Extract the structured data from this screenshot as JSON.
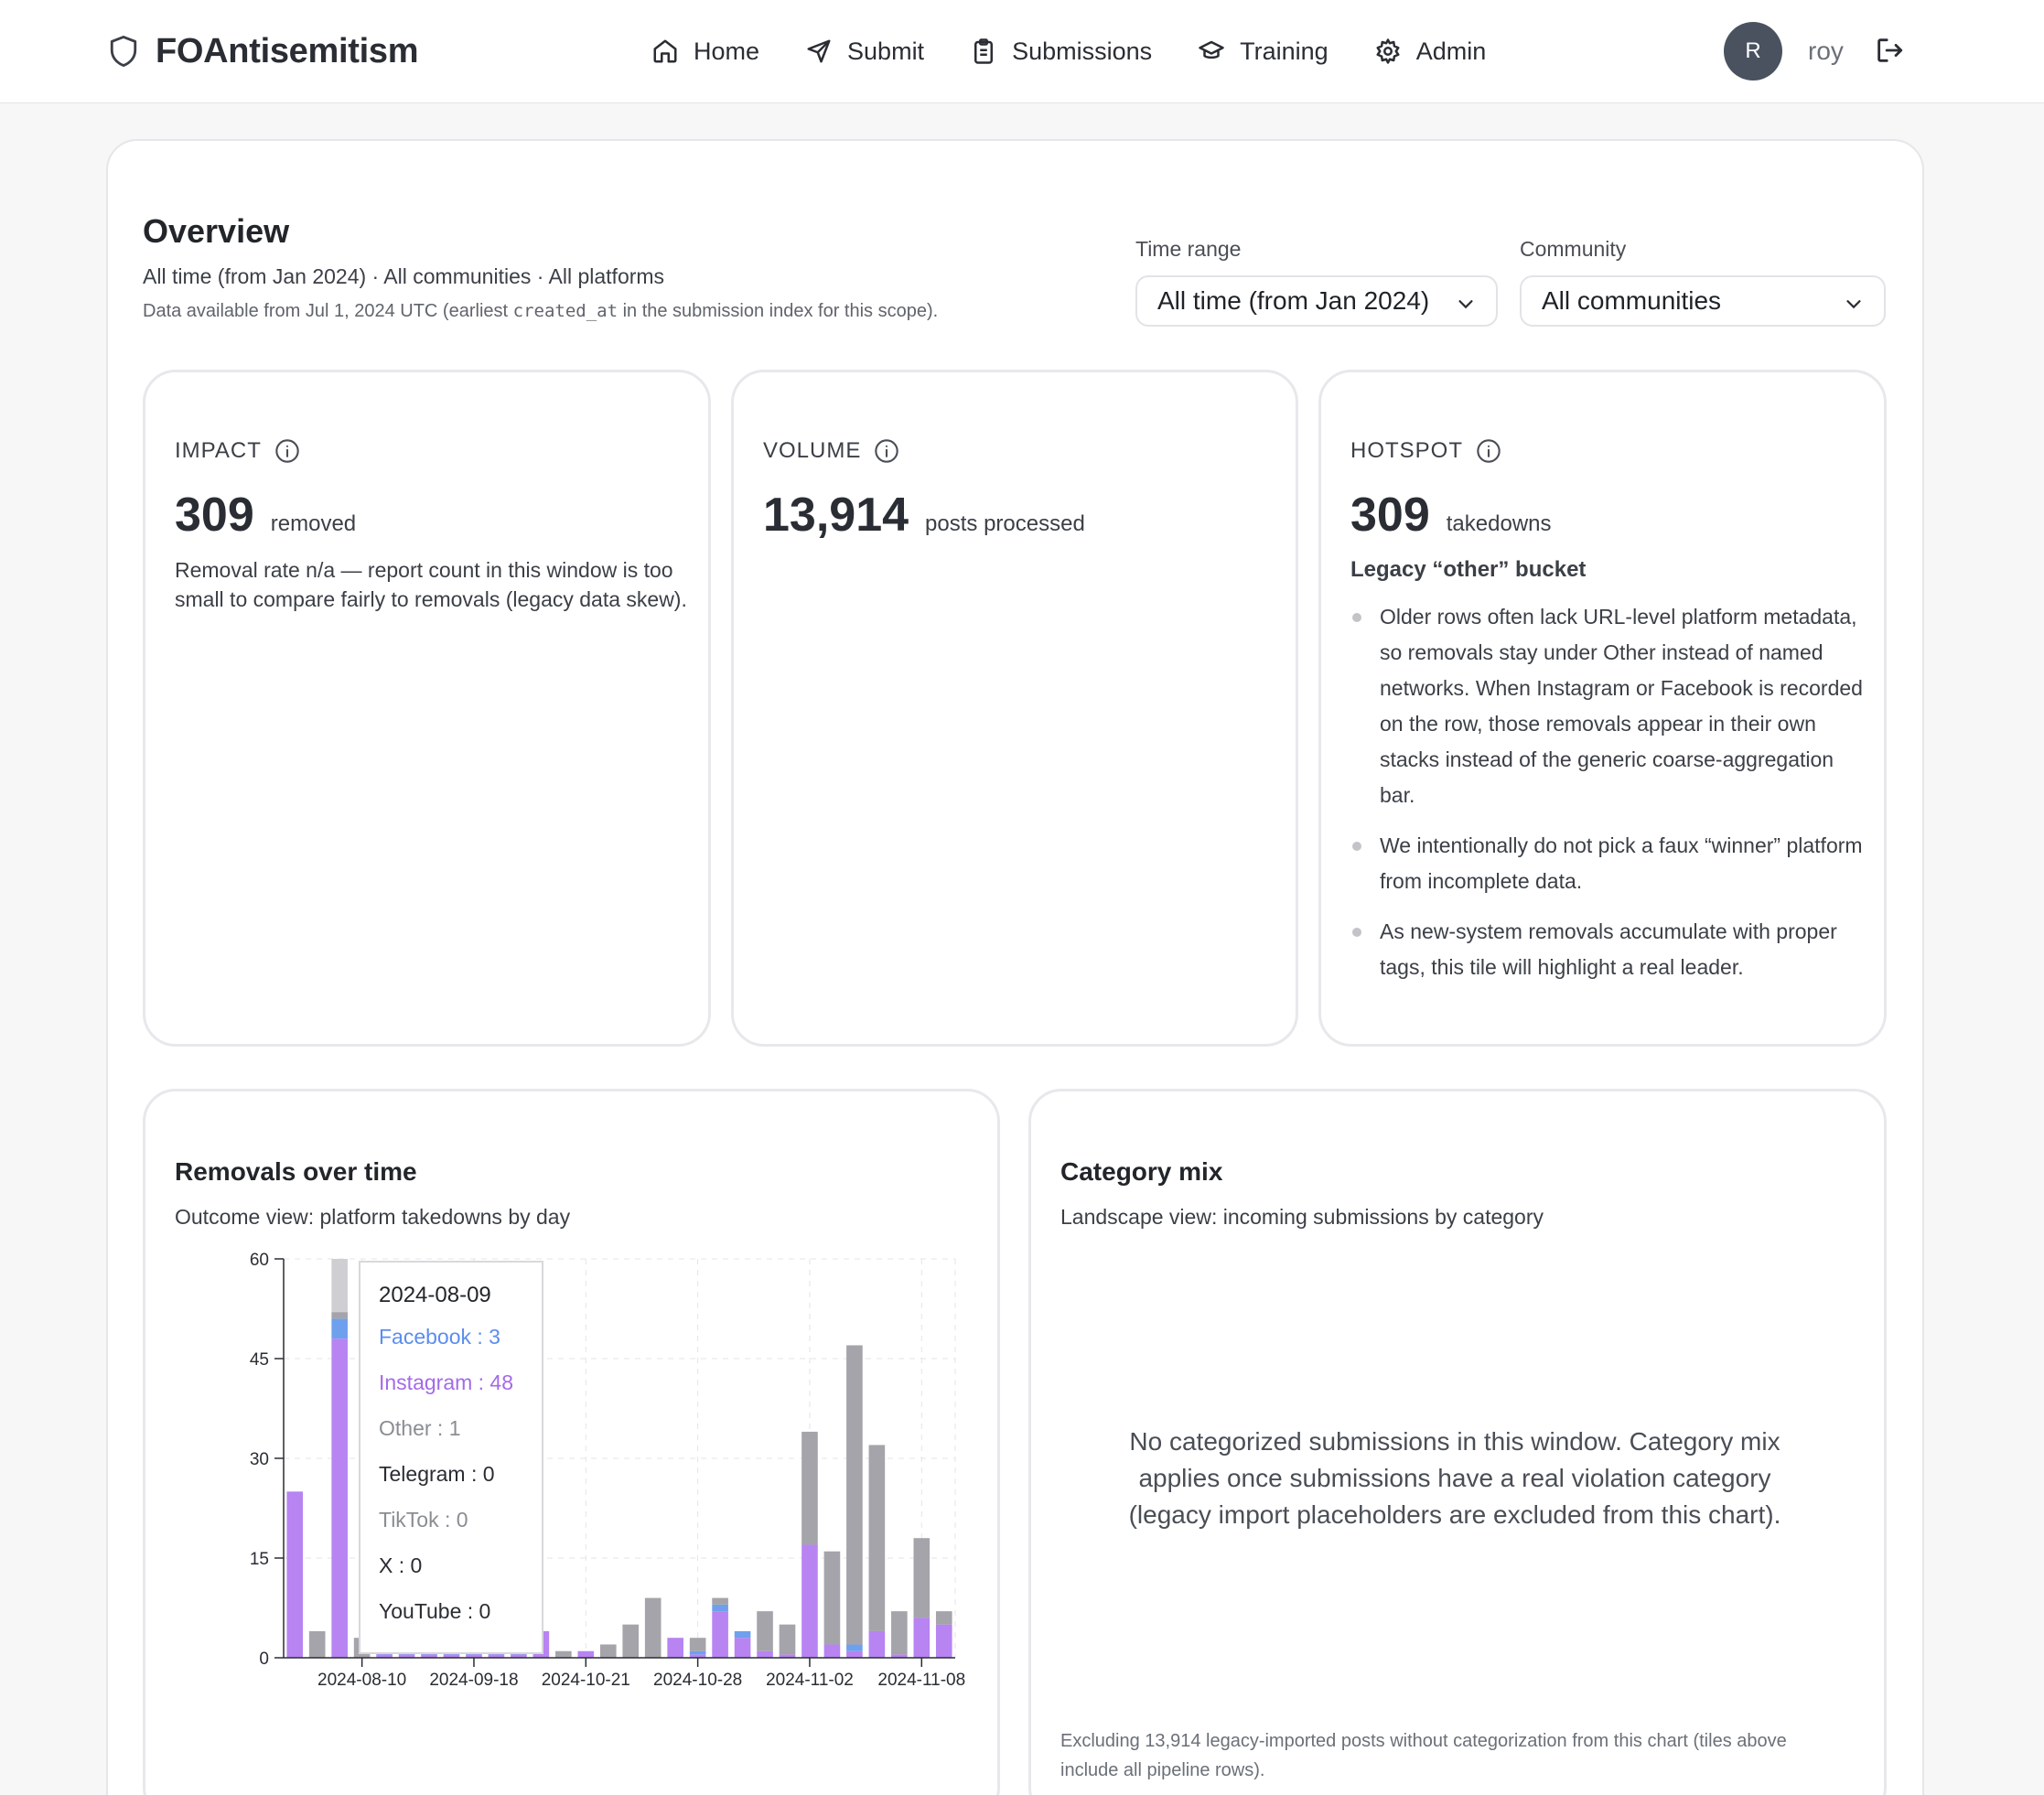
{
  "brand": {
    "name": "FOAntisemitism",
    "icon": "shield-icon"
  },
  "nav": [
    {
      "label": "Home",
      "icon": "home-icon"
    },
    {
      "label": "Submit",
      "icon": "send-icon"
    },
    {
      "label": "Submissions",
      "icon": "clipboard-icon"
    },
    {
      "label": "Training",
      "icon": "graduation-cap-icon"
    },
    {
      "label": "Admin",
      "icon": "gear-icon"
    }
  ],
  "user": {
    "initial": "R",
    "name": "roy"
  },
  "overview": {
    "title": "Overview",
    "subtitle": "All time (from Jan 2024) · All communities · All platforms",
    "note_before": "Data available from Jul 1, 2024 UTC (earliest ",
    "note_code": "created_at",
    "note_after": " in the submission index for this scope)."
  },
  "filters": {
    "time_range": {
      "label": "Time range",
      "value": "All time (from Jan 2024)"
    },
    "community": {
      "label": "Community",
      "value": "All communities"
    }
  },
  "tiles": {
    "impact": {
      "label": "IMPACT",
      "value": "309",
      "unit": "removed",
      "text": "Removal rate n/a — report count in this window is too small to compare fairly to removals (legacy data skew)."
    },
    "volume": {
      "label": "VOLUME",
      "value": "13,914",
      "unit": "posts processed"
    },
    "hotspot": {
      "label": "HOTSPOT",
      "value": "309",
      "unit": "takedowns",
      "subtitle": "Legacy “other” bucket",
      "bullets": [
        "Older rows often lack URL-level platform metadata, so removals stay under Other instead of named networks. When Instagram or Facebook is recorded on the row, those removals appear in their own stacks instead of the generic coarse-aggregation bar.",
        "We intentionally do not pick a faux “winner” platform from incomplete data.",
        "As new-system removals accumulate with proper tags, this tile will highlight a real leader."
      ]
    }
  },
  "removals": {
    "title": "Removals over time",
    "subtitle": "Outcome view: platform takedowns by day",
    "tooltip": {
      "date": "2024-08-09",
      "rows": [
        {
          "text": "Facebook : 3",
          "color": "#5b8def"
        },
        {
          "text": "Instagram : 48",
          "color": "#a36be8"
        },
        {
          "text": "Other : 1",
          "color": "#8a8d93"
        },
        {
          "text": "Telegram : 0",
          "color": "#2a2d33"
        },
        {
          "text": "TikTok : 0",
          "color": "#8a8d93"
        },
        {
          "text": "X : 0",
          "color": "#2a2d33"
        },
        {
          "text": "YouTube : 0",
          "color": "#2a2d33"
        }
      ]
    }
  },
  "category_mix": {
    "title": "Category mix",
    "subtitle": "Landscape view: incoming submissions by category",
    "empty": "No categorized submissions in this window. Category mix applies once submissions have a real violation category (legacy import placeholders are excluded from this chart).",
    "footnote": "Excluding 13,914 legacy-imported posts without categorization from this chart (tiles above include all pipeline rows)."
  },
  "chart_data": {
    "type": "bar",
    "stacked": true,
    "title": "Removals over time",
    "ylim": [
      0,
      60
    ],
    "yticks": [
      "0",
      "15",
      "30",
      "45",
      "60"
    ],
    "xtick_labels": [
      "2024-08-10",
      "2024-09-18",
      "2024-10-21",
      "2024-10-28",
      "2024-11-02",
      "2024-11-08"
    ],
    "xtick_index": [
      3,
      8,
      13,
      18,
      23,
      28
    ],
    "grid": true,
    "colors": {
      "Instagram": "#b784f2",
      "Facebook": "#6fa0ee",
      "Other": "#a4a4aa"
    },
    "series": [
      {
        "name": "Instagram",
        "values": [
          25,
          0,
          48,
          0,
          0.5,
          0.5,
          0.5,
          0.5,
          0.5,
          0.5,
          0.5,
          4,
          0,
          1,
          0,
          0,
          0,
          3,
          0.5,
          7,
          3,
          1,
          0.5,
          17,
          2,
          1,
          4,
          0.5,
          6,
          5
        ]
      },
      {
        "name": "Facebook",
        "values": [
          0,
          0,
          3,
          0,
          0.5,
          0.5,
          0.5,
          0.5,
          0.5,
          0.5,
          0.5,
          0,
          0,
          0,
          0,
          0,
          0,
          0,
          0.5,
          1,
          1,
          0,
          0,
          0,
          0,
          1,
          0,
          0,
          0,
          0
        ]
      },
      {
        "name": "Other",
        "values": [
          0,
          4,
          1,
          3,
          0,
          0,
          0,
          0,
          0,
          0,
          0,
          0,
          1,
          0,
          2,
          5,
          9,
          0,
          2,
          1,
          0,
          6,
          4.5,
          17,
          14,
          45,
          28,
          6.5,
          12,
          2
        ]
      }
    ],
    "highlight": {
      "index": 2,
      "extra": 8
    }
  }
}
